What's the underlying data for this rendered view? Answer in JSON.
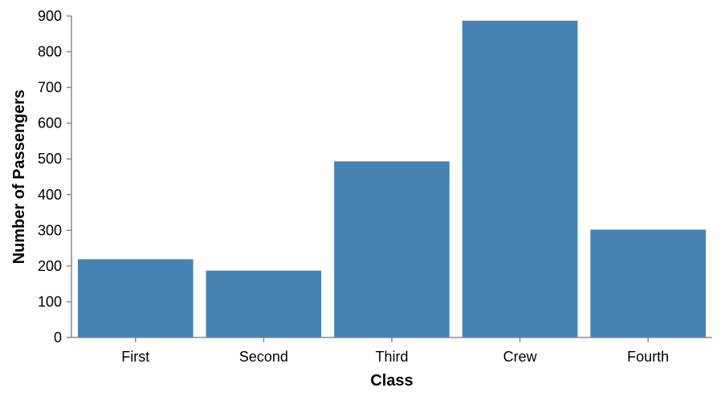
{
  "chart_data": {
    "type": "bar",
    "title": "",
    "xlabel": "Class",
    "ylabel": "Number of Passengers",
    "categories": [
      "First",
      "Second",
      "Third",
      "Crew",
      "Fourth"
    ],
    "values": [
      219,
      187,
      493,
      887,
      302
    ],
    "ylim": [
      0,
      900
    ],
    "yticks": [
      0,
      100,
      200,
      300,
      400,
      500,
      600,
      700,
      800,
      900
    ],
    "grid": false,
    "legend": "none",
    "bar_color": "#4682b4",
    "axis_color": "#888888"
  }
}
